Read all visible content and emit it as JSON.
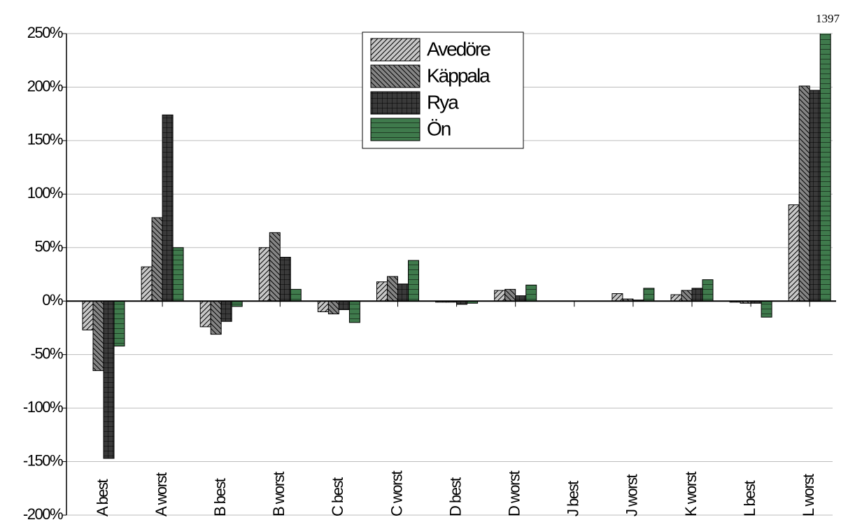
{
  "chart_data": {
    "type": "bar",
    "categories": [
      "A best",
      "A worst",
      "B best",
      "B worst",
      "C best",
      "C worst",
      "D best",
      "D worst",
      "J best",
      "J worst",
      "K worst",
      "L best",
      "L worst"
    ],
    "series": [
      {
        "name": "Avedöre",
        "color": "#c8c8c8",
        "pattern": "forward",
        "values": [
          -27,
          32,
          -24,
          50,
          -10,
          18,
          -1,
          10,
          0,
          7,
          6,
          -1,
          90
        ]
      },
      {
        "name": "Käppala",
        "color": "#858585",
        "pattern": "back",
        "values": [
          -65,
          78,
          -31,
          64,
          -12,
          23,
          -1,
          11,
          0,
          2,
          10,
          -2,
          201
        ]
      },
      {
        "name": "Rya",
        "color": "#3a3a3a",
        "pattern": "grid",
        "values": [
          -147,
          174,
          -19,
          41,
          -8,
          16,
          -3,
          5,
          0,
          1,
          12,
          -2,
          197
        ]
      },
      {
        "name": "Ön",
        "color": "#3f7a4c",
        "pattern": "horizontal",
        "values": [
          -42,
          50,
          -5,
          11,
          -20,
          38,
          -2,
          15,
          0,
          12,
          20,
          -15,
          1397
        ],
        "value_labels": [
          null,
          null,
          null,
          null,
          null,
          null,
          null,
          null,
          null,
          null,
          null,
          null,
          "1397"
        ]
      }
    ],
    "ylim": [
      -200,
      250
    ],
    "yticks": [
      {
        "value": -200,
        "label": "-200%"
      },
      {
        "value": -150,
        "label": "-150%"
      },
      {
        "value": -100,
        "label": "-100%"
      },
      {
        "value": -50,
        "label": "-50%"
      },
      {
        "value": 0,
        "label": "0%"
      },
      {
        "value": 50,
        "label": "50%"
      },
      {
        "value": 100,
        "label": "100%"
      },
      {
        "value": 150,
        "label": "150%"
      },
      {
        "value": 200,
        "label": "200%"
      },
      {
        "value": 250,
        "label": "250%"
      }
    ],
    "grid": true,
    "legend": "top"
  }
}
